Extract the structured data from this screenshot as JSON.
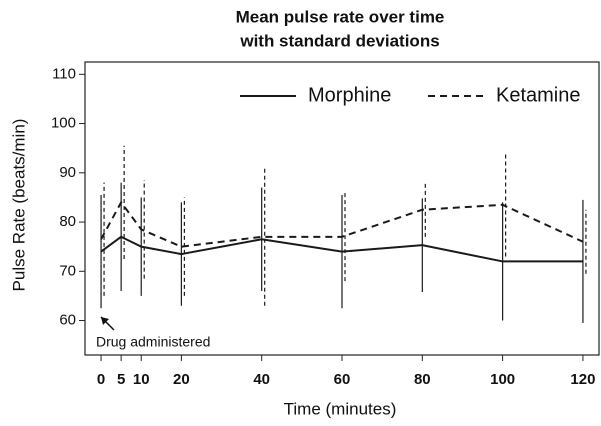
{
  "chart_data": {
    "type": "line",
    "title": [
      "Mean pulse rate over time",
      "with standard deviations"
    ],
    "x_label": "Time (minutes)",
    "y_label": "Pulse Rate (beats/min)",
    "x": [
      0,
      5,
      10,
      20,
      40,
      60,
      80,
      100,
      120
    ],
    "series": [
      {
        "name": "Morphine",
        "color": "#1a1a1a",
        "dash": false,
        "values": [
          74,
          77,
          75,
          73.5,
          76.5,
          74,
          75.3,
          72,
          72
        ],
        "errors": [
          11.5,
          11,
          10,
          10.5,
          10.5,
          11.5,
          9.5,
          12,
          12.5
        ]
      },
      {
        "name": "Ketamine",
        "color": "#1a1a1a",
        "dash": true,
        "values": [
          76.5,
          84,
          78.5,
          75,
          77,
          77,
          82.5,
          83.5,
          76
        ],
        "errors": [
          11.5,
          11.5,
          10,
          10,
          14,
          9,
          5.5,
          10.5,
          6.5
        ]
      }
    ],
    "xlim": [
      -4,
      124
    ],
    "ylim": [
      53,
      112.5
    ],
    "xticks": [
      0,
      5,
      10,
      20,
      40,
      60,
      80,
      100,
      120
    ],
    "yticks": [
      60,
      70,
      80,
      90,
      100,
      110
    ],
    "annotation": "Drug administered",
    "legend": "top-right",
    "grid": false
  }
}
